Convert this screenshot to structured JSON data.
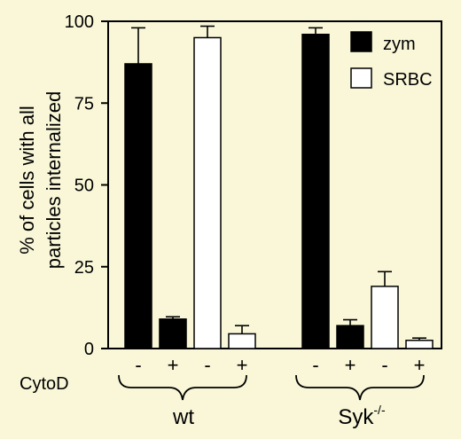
{
  "colors": {
    "background": "#f9f7d8",
    "zym": "#000000",
    "srbc": "#ffffff"
  },
  "chart_data": {
    "type": "bar",
    "title": "",
    "ylabel_line1": "% of cells with all",
    "ylabel_line2": "particles internalized",
    "ylim": [
      0,
      100
    ],
    "yticks": [
      "0",
      "25",
      "50",
      "75",
      "100"
    ],
    "cytod_label": "CytoD",
    "groups": [
      {
        "label": "wt",
        "bars": [
          {
            "series": "zym",
            "cytod": "-",
            "value": 87,
            "error": 11
          },
          {
            "series": "zym",
            "cytod": "+",
            "value": 9,
            "error": 0.7
          },
          {
            "series": "SRBC",
            "cytod": "-",
            "value": 95,
            "error": 3.5
          },
          {
            "series": "SRBC",
            "cytod": "+",
            "value": 4.5,
            "error": 2.5
          }
        ]
      },
      {
        "label": "Syk",
        "label_sup": "-/-",
        "bars": [
          {
            "series": "zym",
            "cytod": "-",
            "value": 96,
            "error": 2
          },
          {
            "series": "zym",
            "cytod": "+",
            "value": 7,
            "error": 1.8
          },
          {
            "series": "SRBC",
            "cytod": "-",
            "value": 19,
            "error": 4.5
          },
          {
            "series": "SRBC",
            "cytod": "+",
            "value": 2.5,
            "error": 0.7
          }
        ]
      }
    ],
    "legend": [
      {
        "name": "zym",
        "fill": "#000000"
      },
      {
        "name": "SRBC",
        "fill": "#ffffff"
      }
    ],
    "legend_position": "top-right",
    "grid": false
  }
}
